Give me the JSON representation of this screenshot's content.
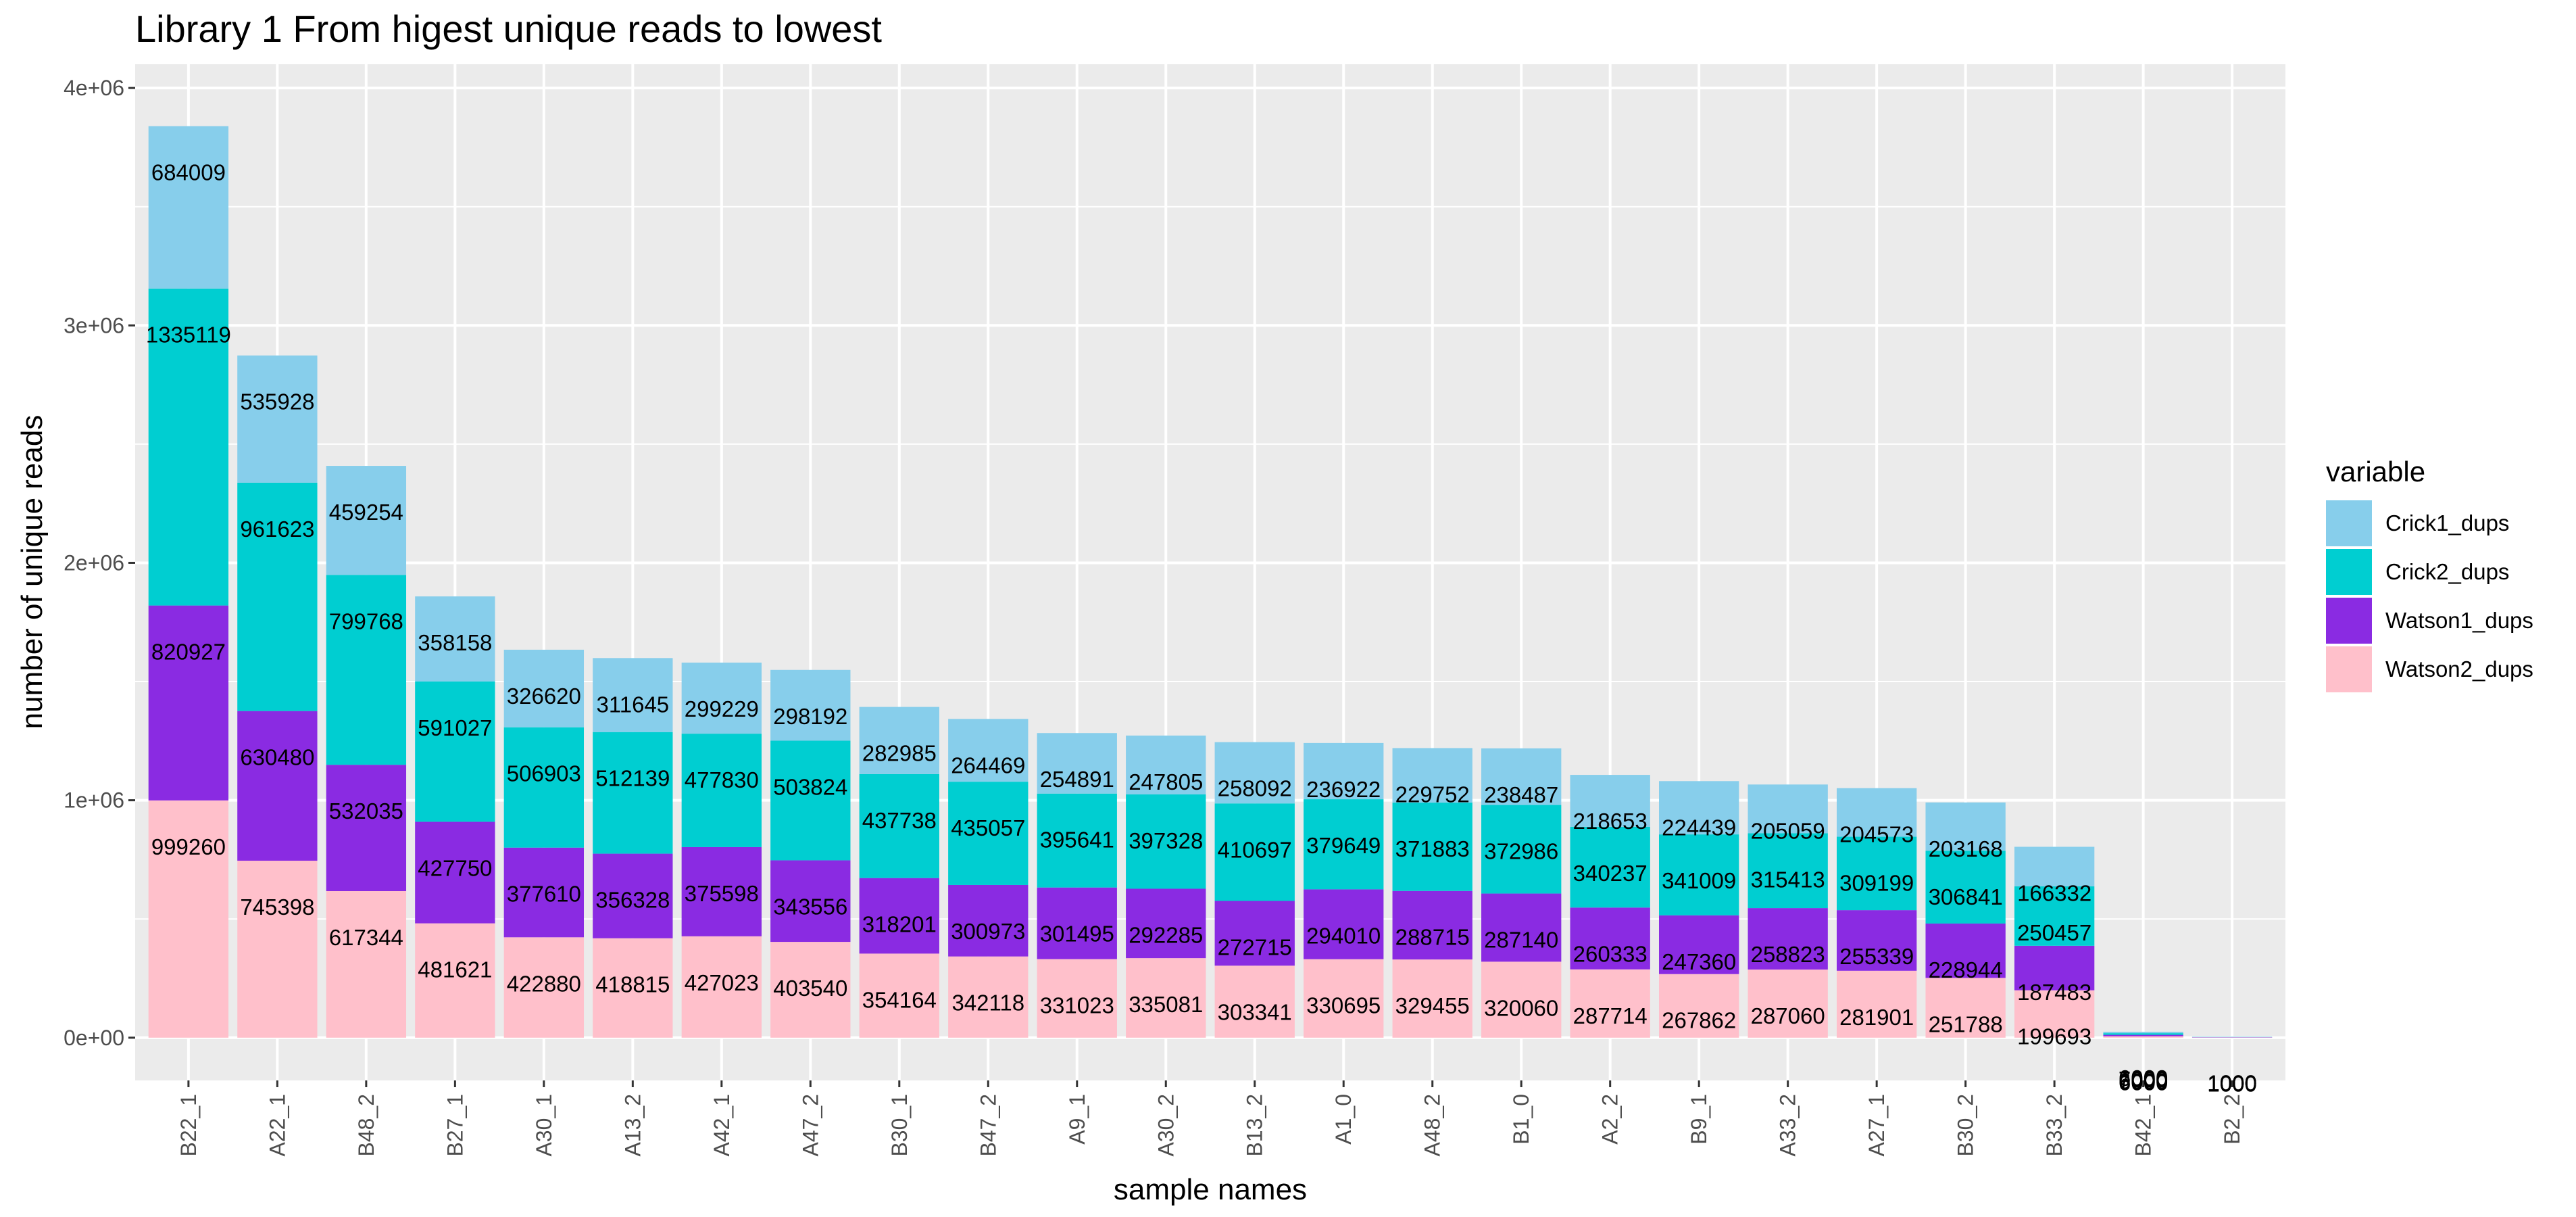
{
  "chart_data": {
    "type": "bar",
    "stacked": true,
    "title": "Library 1 From higest unique reads to lowest",
    "xlabel": "sample names",
    "ylabel": "number of unique reads",
    "ylim": [
      -180000,
      4100000
    ],
    "y_ticks": [
      0,
      1000000,
      2000000,
      3000000,
      4000000
    ],
    "y_tick_labels": [
      "0e+00",
      "1e+06",
      "2e+06",
      "3e+06",
      "4e+06"
    ],
    "grid": true,
    "legend_position": "right",
    "legend_title": "variable",
    "categories": [
      "B22_1",
      "A22_1",
      "B48_2",
      "B27_1",
      "A30_1",
      "A13_2",
      "A42_1",
      "A47_2",
      "B30_1",
      "B47_2",
      "A9_1",
      "A30_2",
      "B13_2",
      "A1_0",
      "A48_2",
      "B1_0",
      "A2_2",
      "B9_1",
      "A33_2",
      "A27_1",
      "B30_2",
      "B33_2",
      "B42_1",
      "B2_2"
    ],
    "series": [
      {
        "name": "Watson2_dups",
        "color": "#FFC0CB",
        "values": [
          999260,
          745398,
          617344,
          481621,
          422880,
          418815,
          427023,
          403540,
          354164,
          342118,
          331023,
          335081,
          303341,
          330695,
          329455,
          320060,
          287714,
          267862,
          287060,
          281901,
          251788,
          199693,
          6000,
          1000
        ]
      },
      {
        "name": "Watson1_dups",
        "color": "#8A2BE2",
        "values": [
          820927,
          630480,
          532035,
          427750,
          377610,
          356328,
          375598,
          343556,
          318201,
          300973,
          301495,
          292285,
          272715,
          294010,
          288715,
          287140,
          260333,
          247360,
          258823,
          255339,
          228944,
          187483,
          6000,
          1000
        ]
      },
      {
        "name": "Crick2_dups",
        "color": "#00CED1",
        "values": [
          1335119,
          961623,
          799768,
          591027,
          506903,
          512139,
          477830,
          503824,
          437738,
          435057,
          395641,
          397328,
          410697,
          379649,
          371883,
          372986,
          340237,
          341009,
          315413,
          309199,
          306841,
          250457,
          7000,
          1000
        ]
      },
      {
        "name": "Crick1_dups",
        "color": "#87CEEB",
        "values": [
          684009,
          535928,
          459254,
          358158,
          326620,
          311645,
          299229,
          298192,
          282985,
          264469,
          254891,
          247805,
          258092,
          236922,
          229752,
          238487,
          218653,
          224439,
          205059,
          204573,
          203168,
          166332,
          6000,
          1000
        ]
      }
    ],
    "legend_order": [
      "Crick1_dups",
      "Crick2_dups",
      "Watson1_dups",
      "Watson2_dups"
    ]
  }
}
